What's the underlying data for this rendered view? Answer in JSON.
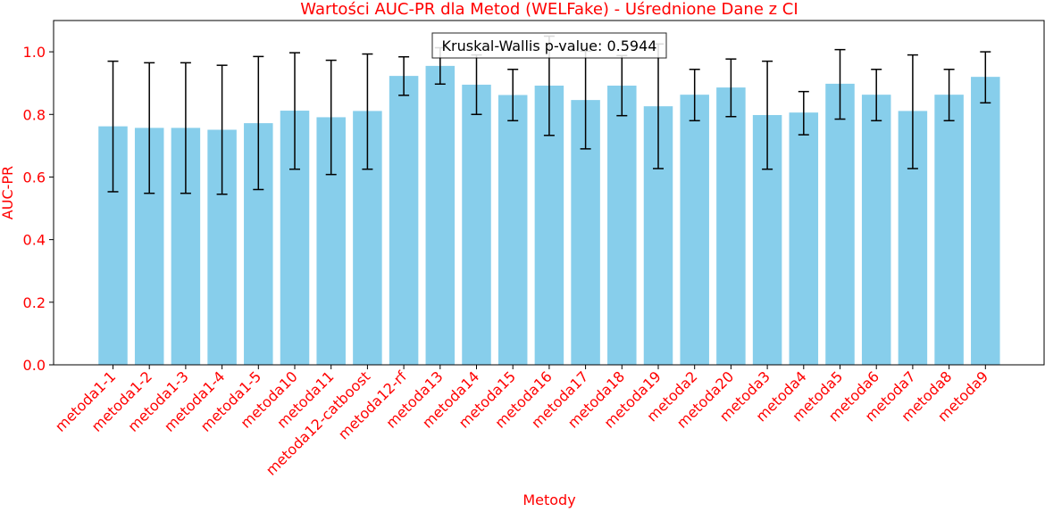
{
  "colors": {
    "bar": "#87ceeb",
    "error_bar": "#000000",
    "text_accent": "#ff0000",
    "axis": "#000000",
    "background": "#ffffff"
  },
  "chart_data": {
    "type": "bar",
    "title": "Wartości AUC-PR dla Metod (WELFake) - Uśrednione Dane z CI",
    "xlabel": "Metody",
    "ylabel": "AUC-PR",
    "ylim": [
      0,
      1.1
    ],
    "yticks": [
      "0.0",
      "0.2",
      "0.4",
      "0.6",
      "0.8",
      "1.0"
    ],
    "grid": false,
    "annotation": "Kruskal-Wallis p-value: 0.5944",
    "categories": [
      "metoda1-1",
      "metoda1-2",
      "metoda1-3",
      "metoda1-4",
      "metoda1-5",
      "metoda10",
      "metoda11",
      "metoda12-catboost",
      "metoda12-rf",
      "metoda13",
      "metoda14",
      "metoda15",
      "metoda16",
      "metoda17",
      "metoda18",
      "metoda19",
      "metoda2",
      "metoda20",
      "metoda3",
      "metoda4",
      "metoda5",
      "metoda6",
      "metoda7",
      "metoda8",
      "metoda9"
    ],
    "values": [
      0.762,
      0.757,
      0.757,
      0.751,
      0.772,
      0.812,
      0.791,
      0.811,
      0.923,
      0.955,
      0.895,
      0.862,
      0.892,
      0.846,
      0.892,
      0.826,
      0.863,
      0.886,
      0.798,
      0.806,
      0.898,
      0.863,
      0.811,
      0.863,
      0.92
    ],
    "ci_lower": [
      0.553,
      0.548,
      0.548,
      0.545,
      0.56,
      0.625,
      0.608,
      0.625,
      0.861,
      0.897,
      0.8,
      0.78,
      0.733,
      0.69,
      0.796,
      0.627,
      0.78,
      0.793,
      0.625,
      0.735,
      0.785,
      0.78,
      0.627,
      0.78,
      0.837
    ],
    "ci_upper": [
      0.97,
      0.965,
      0.965,
      0.957,
      0.985,
      0.997,
      0.973,
      0.993,
      0.984,
      1.013,
      0.99,
      0.944,
      1.05,
      1.002,
      0.988,
      1.025,
      0.944,
      0.977,
      0.97,
      0.873,
      1.007,
      0.944,
      0.99,
      0.944,
      1.0
    ]
  }
}
